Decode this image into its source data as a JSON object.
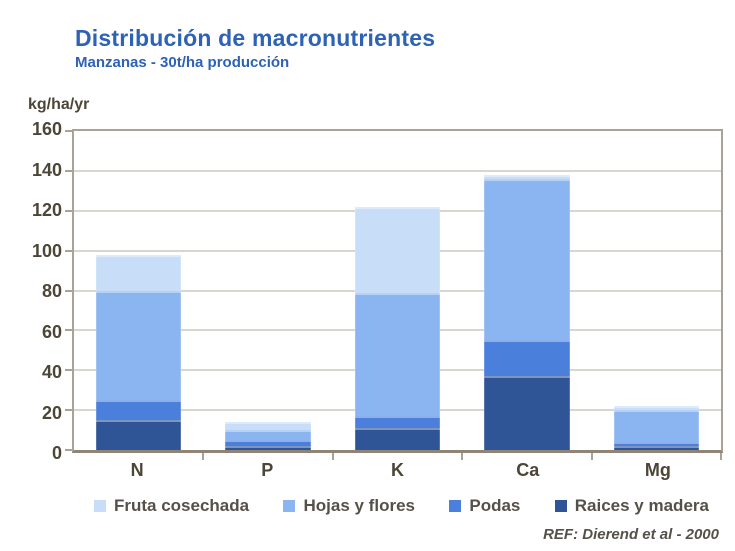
{
  "header": {
    "title": "Distribución de macronutrientes",
    "subtitle": "Manzanas - 30t/ha producción"
  },
  "ref_note": "REF: Dierend et al - 2000",
  "colors": {
    "title_blue": "#2d62b5",
    "axis_text": "#4c4637",
    "legend_text": "#55514a",
    "plot_border": "#aba296",
    "axis_line": "#8e8576",
    "gridline": "#d8d6d0",
    "fruta_cosechada": "#c7ddf8",
    "hojas_y_flores": "#8ab5f0",
    "podas": "#4a7fdb",
    "raices_y_madera": "#2f5597"
  },
  "chart_data": {
    "type": "bar",
    "stacked": true,
    "stacking": "bottom-to-top",
    "title": "Distribución de macronutrientes",
    "subtitle": "Manzanas - 30t/ha producción",
    "ylabel": "kg/ha/yr",
    "xlabel": "",
    "ylim": [
      0,
      160
    ],
    "ytick_step": 20,
    "grid": true,
    "legend_position": "bottom",
    "categories": [
      "N",
      "P",
      "K",
      "Ca",
      "Mg"
    ],
    "series": [
      {
        "name": "Raices y madera",
        "color": "#2f5597",
        "values": [
          15,
          2,
          11,
          37,
          2
        ]
      },
      {
        "name": "Podas",
        "color": "#4a7fdb",
        "values": [
          10,
          3,
          6,
          18,
          2
        ]
      },
      {
        "name": "Hojas y flores",
        "color": "#8ab5f0",
        "values": [
          55,
          5,
          62,
          81,
          16
        ]
      },
      {
        "name": "Fruta cosechada",
        "color": "#c7ddf8",
        "values": [
          18,
          4,
          43,
          2,
          2
        ]
      }
    ],
    "totals": [
      98,
      14,
      122,
      138,
      22
    ]
  }
}
